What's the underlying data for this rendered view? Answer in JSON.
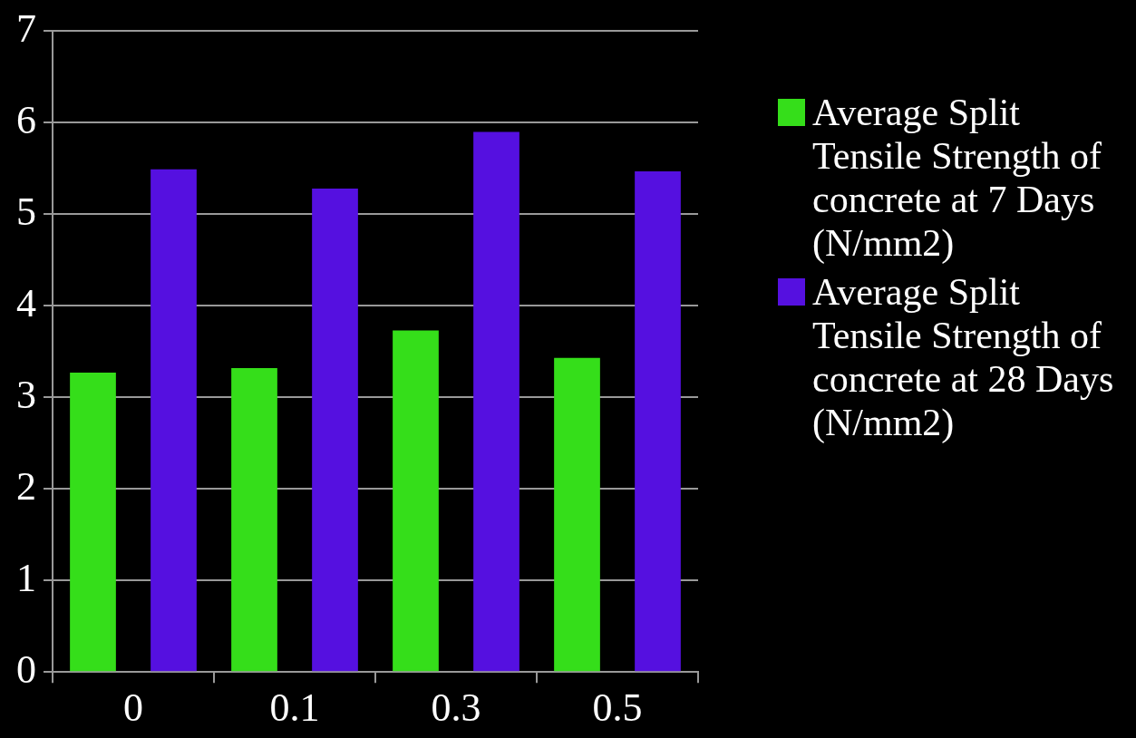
{
  "chart_data": {
    "type": "bar",
    "categories": [
      "0",
      "0.1",
      "0.3",
      "0.5"
    ],
    "series": [
      {
        "name": "Average  Split Tensile Strength of concrete at 7 Days (N/mm2)",
        "color": "#35de1a",
        "values": [
          3.27,
          3.32,
          3.73,
          3.43
        ]
      },
      {
        "name": "Average  Split Tensile Strength of concrete at 28 Days (N/mm2)",
        "color": "#5510e0",
        "values": [
          5.49,
          5.28,
          5.9,
          5.47
        ]
      }
    ],
    "ylim": [
      0,
      7
    ],
    "yticks": [
      0,
      1,
      2,
      3,
      4,
      5,
      6,
      7
    ],
    "grid": "y",
    "legend": "right"
  }
}
